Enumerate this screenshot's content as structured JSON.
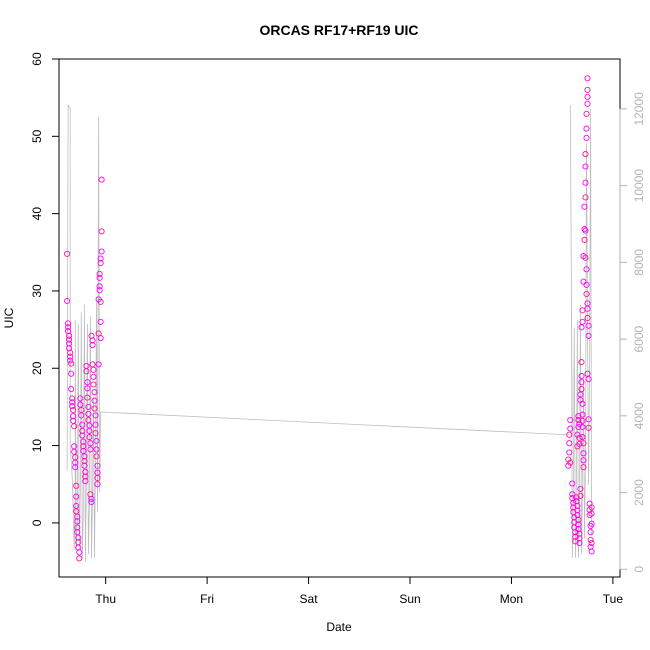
{
  "chart_data": {
    "type": "scatter",
    "title": "ORCAS RF17+RF19 UIC",
    "xlabel": "Date",
    "ylabel": "UIC",
    "x_ticks": [
      "Thu",
      "Fri",
      "Sat",
      "Sun",
      "Mon",
      "Tue"
    ],
    "xlim": [
      -0.46,
      5.07
    ],
    "ylim": [
      -7,
      60
    ],
    "y_ticks": [
      0,
      10,
      20,
      30,
      40,
      50,
      60
    ],
    "y2lim": [
      -200,
      13300
    ],
    "y2_ticks": [
      0,
      2000,
      4000,
      6000,
      8000,
      10000,
      12000
    ],
    "grid": false,
    "legend": "none",
    "colors": {
      "points": "#ff00ff",
      "points_dense": "#ff1493",
      "secondary_line": "#bdbdbd",
      "right_axis": "#b3b3b3"
    },
    "series": [
      {
        "axis": "left",
        "style": "points",
        "points": [
          [
            -0.38,
            34.8
          ],
          [
            -0.38,
            28.7
          ],
          [
            -0.37,
            25.8
          ],
          [
            -0.37,
            25.3
          ],
          [
            -0.37,
            24.8
          ],
          [
            -0.36,
            24.2
          ],
          [
            -0.36,
            23.7
          ],
          [
            -0.36,
            23.2
          ],
          [
            -0.36,
            22.6
          ],
          [
            -0.35,
            22.0
          ],
          [
            -0.35,
            21.5
          ],
          [
            -0.35,
            21.0
          ],
          [
            -0.34,
            20.6
          ],
          [
            -0.34,
            19.3
          ],
          [
            -0.34,
            17.3
          ],
          [
            -0.33,
            16.1
          ],
          [
            -0.33,
            15.6
          ],
          [
            -0.33,
            15.1
          ],
          [
            -0.32,
            14.6
          ],
          [
            -0.32,
            13.8
          ],
          [
            -0.32,
            13.2
          ],
          [
            -0.31,
            12.5
          ],
          [
            -0.31,
            9.9
          ],
          [
            -0.31,
            9.2
          ],
          [
            -0.3,
            8.5
          ],
          [
            -0.3,
            7.8
          ],
          [
            -0.3,
            7.2
          ],
          [
            -0.29,
            4.8
          ],
          [
            -0.29,
            3.4
          ],
          [
            -0.29,
            2.2
          ],
          [
            -0.29,
            1.5
          ],
          [
            -0.28,
            0.8
          ],
          [
            -0.28,
            0.2
          ],
          [
            -0.28,
            -0.6
          ],
          [
            -0.28,
            -1.2
          ],
          [
            -0.27,
            -1.9
          ],
          [
            -0.27,
            -2.5
          ],
          [
            -0.27,
            -3.2
          ],
          [
            -0.26,
            -3.8
          ],
          [
            -0.26,
            -4.6
          ],
          [
            -0.25,
            16.1
          ],
          [
            -0.25,
            15.3
          ],
          [
            -0.24,
            14.6
          ],
          [
            -0.24,
            13.9
          ],
          [
            -0.23,
            12.7
          ],
          [
            -0.23,
            11.9
          ],
          [
            -0.23,
            11.3
          ],
          [
            -0.22,
            10.5
          ],
          [
            -0.22,
            9.9
          ],
          [
            -0.22,
            9.3
          ],
          [
            -0.21,
            8.6
          ],
          [
            -0.21,
            8.0
          ],
          [
            -0.21,
            7.4
          ],
          [
            -0.2,
            6.6
          ],
          [
            -0.2,
            6.0
          ],
          [
            -0.2,
            5.4
          ],
          [
            -0.19,
            20.3
          ],
          [
            -0.19,
            19.6
          ],
          [
            -0.18,
            18.2
          ],
          [
            -0.18,
            17.4
          ],
          [
            -0.18,
            16.2
          ],
          [
            -0.17,
            15.0
          ],
          [
            -0.17,
            14.1
          ],
          [
            -0.17,
            13.3
          ],
          [
            -0.16,
            12.6
          ],
          [
            -0.16,
            11.9
          ],
          [
            -0.16,
            11.1
          ],
          [
            -0.15,
            10.3
          ],
          [
            -0.15,
            9.5
          ],
          [
            -0.15,
            3.7
          ],
          [
            -0.14,
            3.1
          ],
          [
            -0.14,
            2.7
          ],
          [
            -0.14,
            24.2
          ],
          [
            -0.13,
            23.6
          ],
          [
            -0.13,
            23.0
          ],
          [
            -0.13,
            20.5
          ],
          [
            -0.12,
            19.8
          ],
          [
            -0.12,
            18.9
          ],
          [
            -0.12,
            17.9
          ],
          [
            -0.11,
            16.9
          ],
          [
            -0.11,
            15.8
          ],
          [
            -0.11,
            14.8
          ],
          [
            -0.1,
            13.9
          ],
          [
            -0.1,
            12.7
          ],
          [
            -0.1,
            11.6
          ],
          [
            -0.09,
            10.6
          ],
          [
            -0.09,
            9.5
          ],
          [
            -0.09,
            8.6
          ],
          [
            -0.08,
            7.4
          ],
          [
            -0.08,
            6.5
          ],
          [
            -0.08,
            5.8
          ],
          [
            -0.08,
            5.0
          ],
          [
            -0.07,
            20.5
          ],
          [
            -0.07,
            24.5
          ],
          [
            -0.07,
            28.9
          ],
          [
            -0.06,
            30.6
          ],
          [
            -0.06,
            32.2
          ],
          [
            -0.06,
            31.7
          ],
          [
            -0.06,
            30.1
          ],
          [
            -0.05,
            28.6
          ],
          [
            -0.05,
            26.0
          ],
          [
            -0.05,
            23.9
          ],
          [
            -0.05,
            33.6
          ],
          [
            -0.05,
            34.2
          ],
          [
            -0.04,
            35.1
          ],
          [
            -0.04,
            37.7
          ],
          [
            -0.04,
            44.4
          ],
          [
            4.56,
            7.4
          ],
          [
            4.56,
            8.2
          ],
          [
            4.57,
            9.1
          ],
          [
            4.57,
            10.3
          ],
          [
            4.57,
            11.4
          ],
          [
            4.58,
            12.2
          ],
          [
            4.58,
            13.3
          ],
          [
            4.58,
            7.8
          ],
          [
            4.6,
            5.1
          ],
          [
            4.6,
            3.7
          ],
          [
            4.6,
            3.2
          ],
          [
            4.61,
            2.6
          ],
          [
            4.61,
            2.0
          ],
          [
            4.61,
            1.4
          ],
          [
            4.62,
            0.7
          ],
          [
            4.62,
            0.1
          ],
          [
            4.62,
            -0.6
          ],
          [
            4.63,
            -1.2
          ],
          [
            4.63,
            -1.8
          ],
          [
            4.63,
            -2.4
          ],
          [
            4.64,
            3.3
          ],
          [
            4.64,
            2.8
          ],
          [
            4.65,
            2.2
          ],
          [
            4.65,
            1.6
          ],
          [
            4.65,
            1.0
          ],
          [
            4.66,
            0.4
          ],
          [
            4.66,
            -0.2
          ],
          [
            4.66,
            -0.8
          ],
          [
            4.67,
            -1.4
          ],
          [
            4.67,
            -2.0
          ],
          [
            4.67,
            -2.6
          ],
          [
            4.65,
            9.9
          ],
          [
            4.65,
            11.4
          ],
          [
            4.66,
            12.4
          ],
          [
            4.66,
            13.3
          ],
          [
            4.66,
            13.8
          ],
          [
            4.67,
            12.8
          ],
          [
            4.67,
            11.0
          ],
          [
            4.67,
            10.2
          ],
          [
            4.68,
            4.4
          ],
          [
            4.68,
            3.5
          ],
          [
            4.68,
            15.9
          ],
          [
            4.68,
            16.6
          ],
          [
            4.69,
            17.3
          ],
          [
            4.69,
            18.2
          ],
          [
            4.69,
            19.0
          ],
          [
            4.69,
            20.8
          ],
          [
            4.7,
            15.4
          ],
          [
            4.7,
            14.0
          ],
          [
            4.7,
            13.2
          ],
          [
            4.7,
            12.4
          ],
          [
            4.7,
            11.1
          ],
          [
            4.71,
            10.3
          ],
          [
            4.71,
            9.0
          ],
          [
            4.71,
            8.1
          ],
          [
            4.71,
            7.2
          ],
          [
            4.69,
            25.3
          ],
          [
            4.7,
            26.0
          ],
          [
            4.7,
            27.5
          ],
          [
            4.71,
            31.2
          ],
          [
            4.71,
            34.5
          ],
          [
            4.72,
            36.6
          ],
          [
            4.72,
            38.0
          ],
          [
            4.72,
            40.9
          ],
          [
            4.73,
            42.1
          ],
          [
            4.73,
            44.0
          ],
          [
            4.73,
            46.1
          ],
          [
            4.73,
            47.7
          ],
          [
            4.74,
            49.8
          ],
          [
            4.74,
            51.0
          ],
          [
            4.74,
            52.9
          ],
          [
            4.75,
            54.2
          ],
          [
            4.75,
            55.1
          ],
          [
            4.75,
            56.0
          ],
          [
            4.75,
            57.5
          ],
          [
            4.73,
            37.8
          ],
          [
            4.73,
            34.3
          ],
          [
            4.74,
            32.8
          ],
          [
            4.74,
            30.8
          ],
          [
            4.74,
            29.6
          ],
          [
            4.75,
            28.4
          ],
          [
            4.75,
            27.7
          ],
          [
            4.75,
            26.5
          ],
          [
            4.76,
            25.5
          ],
          [
            4.76,
            24.2
          ],
          [
            4.75,
            19.3
          ],
          [
            4.76,
            18.6
          ],
          [
            4.76,
            13.4
          ],
          [
            4.76,
            12.3
          ],
          [
            4.77,
            2.5
          ],
          [
            4.77,
            1.7
          ],
          [
            4.77,
            1.0
          ],
          [
            4.78,
            -0.4
          ],
          [
            4.78,
            -1.2
          ],
          [
            4.78,
            -2.2
          ],
          [
            4.78,
            -3.1
          ],
          [
            4.79,
            -3.7
          ],
          [
            4.79,
            -2.6
          ],
          [
            4.79,
            -0.1
          ],
          [
            4.79,
            1.2
          ],
          [
            4.79,
            2.0
          ]
        ]
      },
      {
        "axis": "right",
        "style": "line",
        "points": [
          [
            -0.38,
            2600
          ],
          [
            -0.37,
            12100
          ],
          [
            -0.36,
            12050
          ],
          [
            -0.35,
            12000
          ],
          [
            -0.35,
            3200
          ],
          [
            -0.34,
            2800
          ],
          [
            -0.33,
            2400
          ],
          [
            -0.32,
            1500
          ],
          [
            -0.31,
            500
          ],
          [
            -0.3,
            1800
          ],
          [
            -0.3,
            6500
          ],
          [
            -0.29,
            500
          ],
          [
            -0.28,
            1200
          ],
          [
            -0.27,
            6400
          ],
          [
            -0.26,
            500
          ],
          [
            -0.25,
            2000
          ],
          [
            -0.24,
            6700
          ],
          [
            -0.23,
            300
          ],
          [
            -0.22,
            1500
          ],
          [
            -0.21,
            6900
          ],
          [
            -0.2,
            200
          ],
          [
            -0.19,
            2500
          ],
          [
            -0.18,
            6400
          ],
          [
            -0.17,
            400
          ],
          [
            -0.16,
            1700
          ],
          [
            -0.15,
            6600
          ],
          [
            -0.14,
            300
          ],
          [
            -0.13,
            1900
          ],
          [
            -0.12,
            4500
          ],
          [
            -0.11,
            300
          ],
          [
            -0.1,
            2800
          ],
          [
            -0.09,
            7000
          ],
          [
            -0.08,
            1500
          ],
          [
            -0.07,
            11800
          ],
          [
            -0.06,
            2000
          ],
          [
            -0.05,
            4100
          ],
          [
            4.6,
            3500
          ],
          [
            4.58,
            12100
          ],
          [
            4.59,
            8000
          ],
          [
            4.6,
            300
          ],
          [
            4.61,
            1800
          ],
          [
            4.62,
            6300
          ],
          [
            4.63,
            300
          ],
          [
            4.64,
            2200
          ],
          [
            4.65,
            6500
          ],
          [
            4.66,
            300
          ],
          [
            4.67,
            1500
          ],
          [
            4.68,
            6900
          ],
          [
            4.69,
            400
          ],
          [
            4.7,
            2200
          ],
          [
            4.71,
            5000
          ],
          [
            4.72,
            800
          ],
          [
            4.73,
            2800
          ],
          [
            4.74,
            11100
          ],
          [
            4.75,
            6400
          ],
          [
            4.76,
            2200
          ],
          [
            4.77,
            5200
          ],
          [
            4.78,
            12000
          ],
          [
            4.79,
            900
          ]
        ]
      }
    ]
  }
}
